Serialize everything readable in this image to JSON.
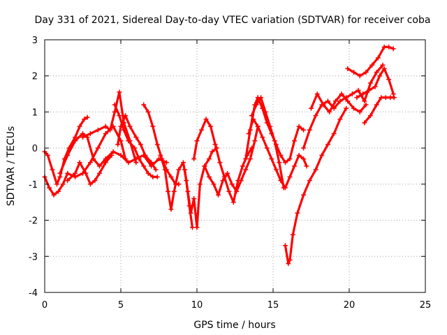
{
  "chart_data": {
    "type": "scatter",
    "title": "Day 331 of 2021, Sidereal Day-to-day VTEC variation (SDTVAR) for receiver coba",
    "xlabel": "GPS time / hours",
    "ylabel": "SDTVAR / TECUs",
    "xlim": [
      0,
      25
    ],
    "ylim": [
      -4,
      3
    ],
    "x_ticks": [
      0,
      5,
      10,
      15,
      20,
      25
    ],
    "y_ticks": [
      -4,
      -3,
      -2,
      -1,
      0,
      1,
      2,
      3
    ],
    "grid": true,
    "marker": "plus",
    "color": "#ff0000",
    "series": [
      {
        "x": [
          0.0,
          0.2,
          0.5,
          0.8,
          1.0,
          1.3,
          1.6,
          2.0,
          2.3,
          2.6,
          2.8
        ],
        "y": [
          -0.1,
          -0.2,
          -0.6,
          -1.0,
          -0.8,
          -0.3,
          0.0,
          0.3,
          0.6,
          0.8,
          0.85
        ]
      },
      {
        "x": [
          2.5,
          3.0,
          3.5,
          4.0,
          4.3,
          4.6,
          4.9,
          5.2,
          5.6,
          6.0
        ],
        "y": [
          0.3,
          0.4,
          0.5,
          0.6,
          0.5,
          1.0,
          1.55,
          0.7,
          0.2,
          -0.4
        ]
      },
      {
        "x": [
          0.0,
          0.3,
          0.6,
          0.9,
          1.2,
          1.5,
          2.0,
          2.5,
          3.0,
          3.5,
          4.0,
          4.5,
          5.0,
          5.3
        ],
        "y": [
          -0.8,
          -1.1,
          -1.3,
          -1.2,
          -1.0,
          -0.7,
          -0.8,
          -0.7,
          -0.4,
          0.0,
          0.4,
          0.6,
          0.2,
          -0.3
        ]
      },
      {
        "x": [
          1.0,
          1.5,
          2.0,
          2.5,
          2.8,
          3.2,
          3.6,
          4.0,
          4.5,
          5.0,
          5.5,
          6.0,
          6.5,
          7.0,
          7.5,
          8.0
        ],
        "y": [
          -0.7,
          -0.2,
          0.2,
          0.4,
          0.3,
          -0.3,
          -0.5,
          -0.3,
          -0.1,
          -0.2,
          -0.4,
          -0.3,
          -0.2,
          -0.5,
          -0.3,
          -0.4
        ]
      },
      {
        "x": [
          1.5,
          2.0,
          2.3,
          2.7,
          3.0,
          3.3,
          3.6,
          4.0,
          4.4
        ],
        "y": [
          -0.9,
          -0.7,
          -0.4,
          -0.7,
          -1.0,
          -0.9,
          -0.7,
          -0.4,
          -0.2
        ]
      },
      {
        "x": [
          4.8,
          5.0,
          5.3,
          5.6,
          6.0,
          6.3,
          6.6,
          7.0,
          7.3
        ],
        "y": [
          0.1,
          0.6,
          0.9,
          0.6,
          0.3,
          0.1,
          -0.2,
          -0.4,
          -0.6
        ]
      },
      {
        "x": [
          4.6,
          4.9,
          5.2,
          5.5,
          5.9,
          6.2,
          6.5,
          6.8,
          7.1,
          7.4
        ],
        "y": [
          1.2,
          0.9,
          0.5,
          0.2,
          0.0,
          -0.3,
          -0.5,
          -0.7,
          -0.8,
          -0.8
        ]
      },
      {
        "x": [
          6.5,
          6.8,
          7.1,
          7.4,
          7.7,
          8.0,
          8.3,
          8.6,
          8.8
        ],
        "y": [
          1.2,
          1.0,
          0.6,
          0.1,
          -0.3,
          -0.6,
          -0.8,
          -1.0,
          -1.0
        ]
      },
      {
        "x": [
          7.6,
          7.9,
          8.1,
          8.3,
          8.5,
          8.8,
          9.1,
          9.3,
          9.5,
          9.7
        ],
        "y": [
          -0.2,
          -0.6,
          -1.2,
          -1.7,
          -1.2,
          -0.6,
          -0.4,
          -0.9,
          -1.6,
          -2.2
        ]
      },
      {
        "x": [
          9.2,
          9.4,
          9.6,
          9.8,
          10.0,
          10.2,
          10.5,
          10.8,
          11.0,
          11.3
        ],
        "y": [
          -0.6,
          -1.2,
          -1.8,
          -1.4,
          -2.2,
          -1.0,
          -0.5,
          -0.3,
          -0.1,
          0.0
        ]
      },
      {
        "x": [
          9.8,
          10.0,
          10.3,
          10.6,
          10.9,
          11.2,
          11.5,
          11.8,
          12.1,
          12.4,
          12.7,
          13.0,
          13.3,
          13.6
        ],
        "y": [
          -0.3,
          0.2,
          0.5,
          0.8,
          0.6,
          0.1,
          -0.4,
          -0.8,
          -1.2,
          -1.5,
          -0.9,
          -0.5,
          -0.2,
          0.0
        ]
      },
      {
        "x": [
          10.5,
          10.8,
          11.1,
          11.4,
          11.7,
          12.0,
          12.3,
          12.6,
          12.9,
          13.2,
          13.5,
          13.8,
          14.0
        ],
        "y": [
          -0.5,
          -0.8,
          -1.0,
          -1.3,
          -0.9,
          -0.7,
          -1.0,
          -1.2,
          -0.9,
          -0.6,
          -0.3,
          0.2,
          0.6
        ]
      },
      {
        "x": [
          13.2,
          13.5,
          13.8,
          14.0,
          14.3,
          14.6,
          14.9,
          15.2,
          15.5,
          15.8,
          16.1,
          16.4,
          16.7,
          17.0
        ],
        "y": [
          -0.3,
          0.5,
          1.2,
          1.4,
          1.1,
          0.7,
          0.4,
          0.1,
          -0.2,
          -0.4,
          -0.3,
          0.2,
          0.6,
          0.5
        ]
      },
      {
        "x": [
          13.4,
          13.7,
          14.0,
          14.3,
          14.6,
          14.9,
          15.2,
          15.5,
          15.8,
          16.1,
          16.4,
          16.7,
          17.0,
          17.2
        ],
        "y": [
          0.4,
          0.8,
          0.6,
          0.3,
          0.0,
          -0.3,
          -0.6,
          -0.9,
          -1.1,
          -0.8,
          -0.5,
          -0.2,
          -0.3,
          -0.5
        ]
      },
      {
        "x": [
          13.6,
          13.9,
          14.2,
          14.5,
          14.8,
          15.1,
          15.4,
          15.7
        ],
        "y": [
          0.9,
          1.2,
          1.4,
          1.0,
          0.6,
          0.2,
          -0.4,
          -1.1
        ]
      },
      {
        "x": [
          15.8,
          16.0,
          16.1,
          16.3,
          16.6,
          17.0,
          17.4,
          17.8,
          18.2,
          18.6,
          19.0,
          19.4,
          19.8
        ],
        "y": [
          -2.7,
          -3.2,
          -3.1,
          -2.4,
          -1.8,
          -1.3,
          -0.9,
          -0.6,
          -0.2,
          0.1,
          0.4,
          0.8,
          1.1
        ]
      },
      {
        "x": [
          17.0,
          17.4,
          17.8,
          18.2,
          18.6,
          19.0,
          19.4,
          19.8,
          20.2,
          20.6,
          21.0,
          21.4,
          21.8,
          22.2
        ],
        "y": [
          0.0,
          0.5,
          0.9,
          1.2,
          1.3,
          1.1,
          1.3,
          1.4,
          1.5,
          1.6,
          1.3,
          1.8,
          2.1,
          2.3
        ]
      },
      {
        "x": [
          17.5,
          17.9,
          18.3,
          18.7,
          19.1,
          19.5,
          19.9,
          20.3,
          20.7,
          21.1
        ],
        "y": [
          1.1,
          1.5,
          1.2,
          1.0,
          1.3,
          1.5,
          1.3,
          1.1,
          1.0,
          1.2
        ]
      },
      {
        "x": [
          19.9,
          20.3,
          20.7,
          21.1,
          21.5,
          21.9,
          22.3,
          22.6,
          22.9
        ],
        "y": [
          2.2,
          2.1,
          2.0,
          2.1,
          2.3,
          2.5,
          2.8,
          2.8,
          2.75
        ]
      },
      {
        "x": [
          20.5,
          20.9,
          21.3,
          21.7,
          22.0,
          22.3,
          22.6,
          22.9
        ],
        "y": [
          1.4,
          1.5,
          1.6,
          1.7,
          2.0,
          2.2,
          1.9,
          1.5
        ]
      },
      {
        "x": [
          21.0,
          21.4,
          21.8,
          22.1,
          22.4,
          22.7,
          22.95
        ],
        "y": [
          0.7,
          0.9,
          1.2,
          1.4,
          1.4,
          1.4,
          1.4
        ]
      }
    ]
  }
}
